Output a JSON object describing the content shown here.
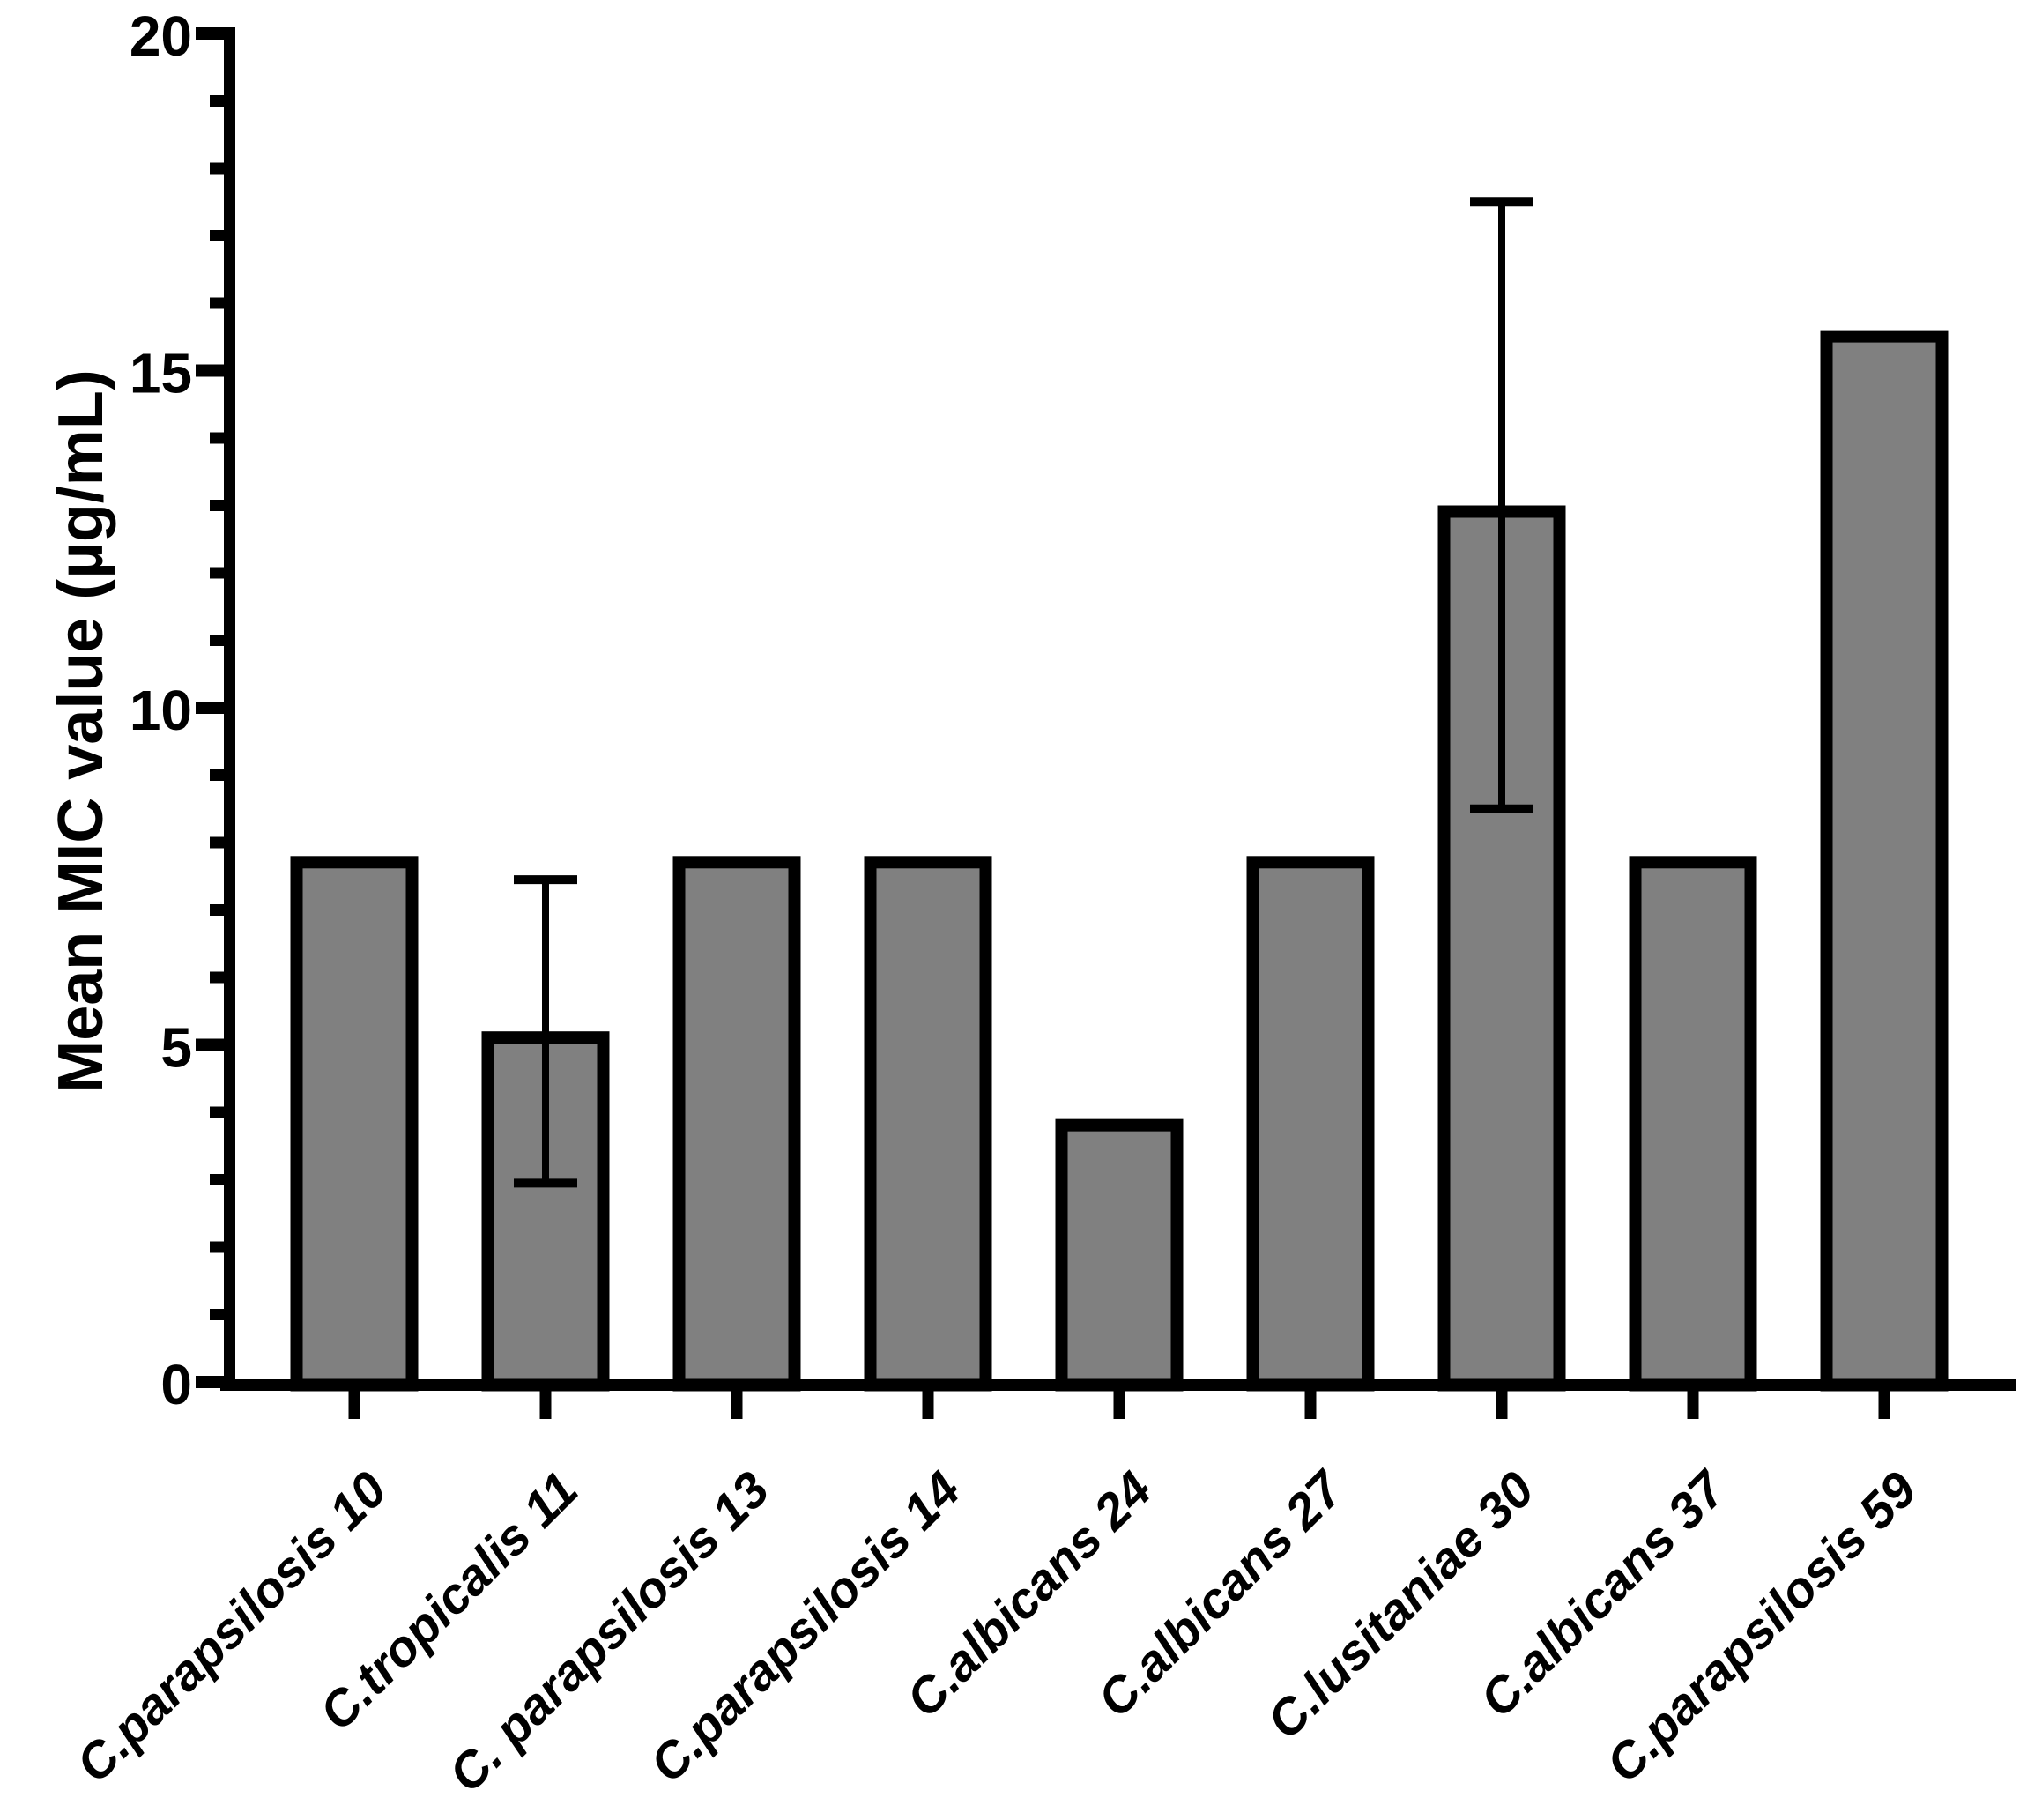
{
  "figure": {
    "background_color": "#ffffff",
    "foreground_color": "#000000"
  },
  "chart_data": {
    "type": "bar",
    "title": "",
    "xlabel": "",
    "ylabel": "Mean MIC value (µg/mL)",
    "ylim": [
      0,
      20
    ],
    "y_major_step": 5,
    "y_minor_step": 1,
    "yticks": [
      "0",
      "5",
      "10",
      "15",
      "20"
    ],
    "grid": false,
    "legend": false,
    "categories": [
      "C.parapsilosis 10",
      "C.tropicalis 11",
      "C. parapsilosis 13",
      "C.parapsilosis 14",
      "C.albicans 24",
      "C.albicans 27",
      "C.lusitaniae 30",
      "C.albicans 37",
      "C.parapsilosis 59"
    ],
    "series": [
      {
        "name": "Mean MIC value (µg/mL)",
        "values": [
          7.8,
          5.2,
          7.8,
          7.8,
          3.9,
          7.8,
          13.0,
          7.8,
          15.6
        ],
        "error_bars": [
          null,
          2.25,
          null,
          null,
          null,
          null,
          4.5,
          null,
          null
        ]
      }
    ],
    "bar_fill_color": "#808080",
    "bar_border_color": "#000000",
    "axis_color": "#000000"
  }
}
